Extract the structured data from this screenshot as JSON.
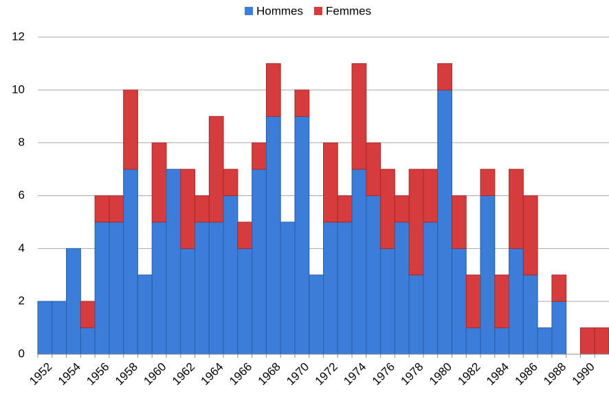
{
  "chart_data": {
    "type": "stacked_bar",
    "categories": [
      "1952",
      null,
      "1954",
      null,
      "1956",
      null,
      "1958",
      null,
      "1960",
      null,
      "1962",
      null,
      "1964",
      null,
      "1966",
      null,
      "1968",
      null,
      "1970",
      null,
      "1972",
      null,
      "1974",
      null,
      "1976",
      null,
      "1978",
      null,
      "1980",
      null,
      "1982",
      null,
      "1984",
      null,
      "1986",
      null,
      "1988",
      null,
      "1990",
      null
    ],
    "series": [
      {
        "name": "Hommes",
        "color": "#3b7dd8",
        "values": [
          2,
          2,
          4,
          1,
          5,
          5,
          7,
          3,
          5,
          7,
          4,
          5,
          5,
          6,
          4,
          7,
          9,
          5,
          9,
          3,
          5,
          5,
          7,
          6,
          4,
          5,
          3,
          5,
          10,
          4,
          1,
          6,
          1,
          4,
          3,
          1,
          2,
          0,
          0,
          0
        ]
      },
      {
        "name": "Femmes",
        "color": "#d63c3c",
        "values": [
          0,
          0,
          0,
          1,
          1,
          1,
          3,
          0,
          3,
          0,
          3,
          1,
          4,
          1,
          1,
          1,
          2,
          0,
          1,
          0,
          3,
          1,
          4,
          2,
          3,
          1,
          4,
          2,
          1,
          2,
          2,
          1,
          2,
          3,
          3,
          0,
          1,
          0,
          1,
          1
        ]
      }
    ],
    "ylim": [
      0,
      12
    ],
    "yticks": [
      0,
      2,
      4,
      6,
      8,
      10,
      12
    ],
    "grid": true,
    "legend": "top"
  }
}
